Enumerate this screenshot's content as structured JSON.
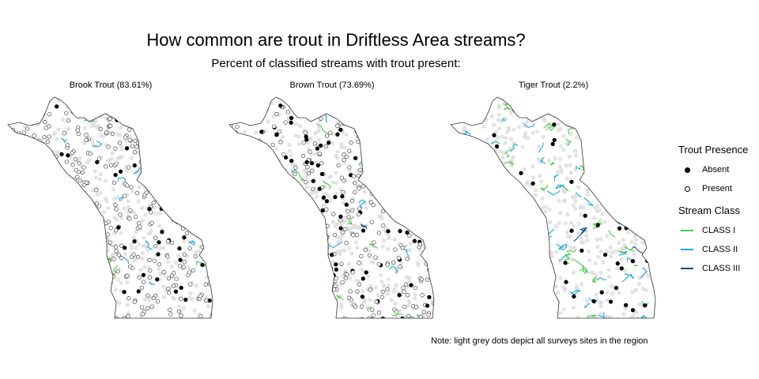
{
  "title": "How common are trout in Driftless Area streams?",
  "subtitle": "Percent of classified streams with trout present:",
  "panels": [
    {
      "label": "Brook Trout (83.61%)",
      "presence_rate": 0.8361
    },
    {
      "label": "Brown Trout (73.69%)",
      "presence_rate": 0.7369
    },
    {
      "label": "Tiger Trout (2.2%)",
      "presence_rate": 0.022
    }
  ],
  "legend": {
    "presence_title": "Trout Presence",
    "presence": [
      {
        "label": "Absent",
        "fill": "#000000"
      },
      {
        "label": "Present",
        "fill": "#ffffff"
      }
    ],
    "class_title": "Stream Class",
    "classes": [
      {
        "label": "CLASS I",
        "color": "#4ccb4c"
      },
      {
        "label": "CLASS II",
        "color": "#1aa7e8"
      },
      {
        "label": "CLASS III",
        "color": "#0b4a8a"
      }
    ]
  },
  "note": "Note: light grey dots depict all surveys sites in the region"
}
